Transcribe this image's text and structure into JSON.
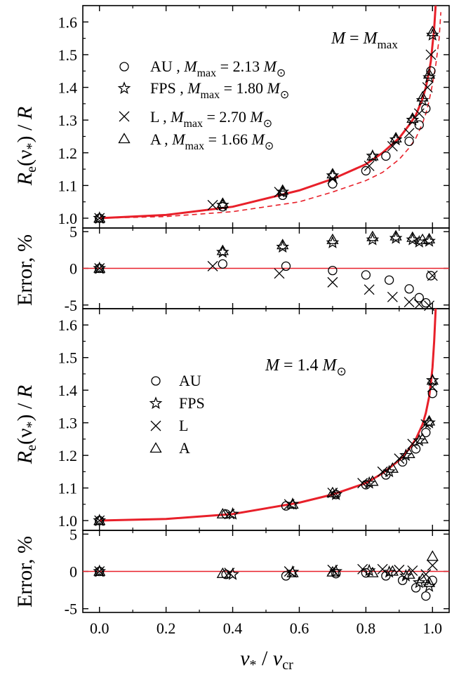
{
  "chart_data": [
    {
      "type": "scatter",
      "panel": "top-ratio",
      "annotation": "M = M_max",
      "ylabel": "R_e(ν_*) / R",
      "ylim": [
        0.97,
        1.65
      ],
      "yticks": [
        1.0,
        1.1,
        1.2,
        1.3,
        1.4,
        1.5,
        1.6
      ],
      "xlim": [
        -0.05,
        1.05
      ],
      "legend_position": "upper-left",
      "series": [
        {
          "name": "AU",
          "mmax": "M_max = 2.13 M_⊙",
          "marker": "circle",
          "x": [
            0.0,
            0.37,
            0.55,
            0.7,
            0.8,
            0.86,
            0.93,
            0.96,
            0.98,
            0.995
          ],
          "y": [
            1.0,
            1.035,
            1.07,
            1.105,
            1.145,
            1.19,
            1.235,
            1.285,
            1.335,
            1.45
          ]
        },
        {
          "name": "FPS",
          "mmax": "M_max = 1.80 M_⊙",
          "marker": "star",
          "x": [
            0.0,
            0.37,
            0.55,
            0.7,
            0.82,
            0.89,
            0.94,
            0.97,
            0.99,
            1.0
          ],
          "y": [
            1.0,
            1.04,
            1.08,
            1.13,
            1.19,
            1.24,
            1.3,
            1.36,
            1.43,
            1.56
          ]
        },
        {
          "name": "L",
          "mmax": "M_max = 2.70 M_⊙",
          "marker": "cross",
          "x": [
            0.0,
            0.34,
            0.54,
            0.7,
            0.81,
            0.88,
            0.93,
            0.96,
            0.985,
            0.995
          ],
          "y": [
            1.0,
            1.04,
            1.08,
            1.12,
            1.16,
            1.22,
            1.26,
            1.32,
            1.4,
            1.5
          ]
        },
        {
          "name": "A",
          "mmax": "M_max = 1.66 M_⊙",
          "marker": "triangle",
          "x": [
            0.0,
            0.37,
            0.55,
            0.7,
            0.82,
            0.89,
            0.94,
            0.97,
            0.99,
            1.0
          ],
          "y": [
            1.0,
            1.045,
            1.085,
            1.135,
            1.19,
            1.245,
            1.305,
            1.37,
            1.44,
            1.57
          ]
        }
      ],
      "curves": [
        {
          "style": "solid",
          "x": [
            0,
            0.2,
            0.4,
            0.6,
            0.7,
            0.8,
            0.85,
            0.9,
            0.93,
            0.95,
            0.97,
            0.98,
            0.99,
            0.995,
            1.0,
            1.005,
            1.01
          ],
          "y": [
            1.0,
            1.01,
            1.035,
            1.085,
            1.12,
            1.165,
            1.2,
            1.245,
            1.285,
            1.315,
            1.365,
            1.4,
            1.45,
            1.48,
            1.53,
            1.58,
            1.66
          ]
        },
        {
          "style": "dashed",
          "x": [
            0,
            0.2,
            0.4,
            0.6,
            0.7,
            0.8,
            0.85,
            0.9,
            0.93,
            0.95,
            0.97,
            0.98,
            0.99,
            1.0,
            1.01,
            1.02,
            1.025
          ],
          "y": [
            1.0,
            1.005,
            1.02,
            1.05,
            1.08,
            1.115,
            1.14,
            1.18,
            1.215,
            1.245,
            1.29,
            1.32,
            1.36,
            1.41,
            1.47,
            1.55,
            1.63
          ]
        }
      ]
    },
    {
      "type": "scatter",
      "panel": "top-error",
      "ylabel": "Error, %",
      "ylim": [
        -5.5,
        5.5
      ],
      "yticks": [
        -5,
        0,
        5
      ],
      "xlim": [
        -0.05,
        1.05
      ],
      "reference_line": 0,
      "series": [
        {
          "name": "AU",
          "marker": "circle",
          "x": [
            0.0,
            0.37,
            0.56,
            0.7,
            0.8,
            0.87,
            0.93,
            0.96,
            0.98,
            0.995
          ],
          "y": [
            0.0,
            0.6,
            0.3,
            -0.3,
            -0.9,
            -1.6,
            -2.8,
            -4.0,
            -4.7,
            -1.0
          ]
        },
        {
          "name": "FPS",
          "marker": "star",
          "x": [
            0.0,
            0.37,
            0.55,
            0.7,
            0.82,
            0.89,
            0.94,
            0.96,
            0.99
          ],
          "y": [
            0.0,
            2.2,
            2.9,
            3.5,
            3.9,
            4.1,
            3.9,
            3.6,
            3.7
          ]
        },
        {
          "name": "L",
          "marker": "cross",
          "x": [
            0.0,
            0.34,
            0.54,
            0.7,
            0.81,
            0.88,
            0.93,
            0.96,
            0.99,
            1.0
          ],
          "y": [
            0.0,
            0.3,
            -0.7,
            -1.9,
            -2.9,
            -3.9,
            -4.6,
            -4.9,
            -5.1,
            -1.0
          ]
        },
        {
          "name": "A",
          "marker": "triangle",
          "x": [
            0.0,
            0.37,
            0.55,
            0.7,
            0.82,
            0.89,
            0.94,
            0.97,
            0.99
          ],
          "y": [
            0.0,
            2.4,
            3.2,
            3.9,
            4.3,
            4.4,
            4.2,
            3.9,
            4.0
          ]
        }
      ]
    },
    {
      "type": "scatter",
      "panel": "bottom-ratio",
      "annotation": "M = 1.4 M_⊙",
      "ylabel": "R_e(ν_*) / R",
      "ylim": [
        0.97,
        1.65
      ],
      "yticks": [
        1.0,
        1.1,
        1.2,
        1.3,
        1.4,
        1.5,
        1.6
      ],
      "xlim": [
        -0.05,
        1.05
      ],
      "legend_position": "upper-left",
      "series": [
        {
          "name": "AU",
          "marker": "circle",
          "x": [
            0.0,
            0.38,
            0.56,
            0.71,
            0.8,
            0.86,
            0.91,
            0.95,
            0.98,
            1.0
          ],
          "y": [
            1.0,
            1.02,
            1.045,
            1.08,
            1.11,
            1.14,
            1.18,
            1.22,
            1.27,
            1.39
          ]
        },
        {
          "name": "FPS",
          "marker": "star",
          "x": [
            0.0,
            0.4,
            0.58,
            0.71,
            0.81,
            0.87,
            0.92,
            0.96,
            0.99,
            1.0
          ],
          "y": [
            1.0,
            1.02,
            1.05,
            1.08,
            1.115,
            1.15,
            1.2,
            1.245,
            1.3,
            1.43
          ]
        },
        {
          "name": "L",
          "marker": "cross",
          "x": [
            0.0,
            0.39,
            0.57,
            0.7,
            0.79,
            0.85,
            0.9,
            0.94,
            0.98,
            1.0
          ],
          "y": [
            1.0,
            1.02,
            1.05,
            1.085,
            1.115,
            1.15,
            1.19,
            1.235,
            1.295,
            1.41
          ]
        },
        {
          "name": "A",
          "marker": "triangle",
          "x": [
            0.0,
            0.37,
            0.58,
            0.7,
            0.82,
            0.88,
            0.93,
            0.97,
            0.99,
            1.0
          ],
          "y": [
            1.0,
            1.02,
            1.05,
            1.085,
            1.12,
            1.16,
            1.205,
            1.25,
            1.305,
            1.43
          ]
        }
      ],
      "curves": [
        {
          "style": "solid",
          "x": [
            0,
            0.2,
            0.4,
            0.6,
            0.7,
            0.8,
            0.85,
            0.9,
            0.93,
            0.95,
            0.97,
            0.98,
            0.99,
            0.995,
            1.0,
            1.005,
            1.01
          ],
          "y": [
            1.0,
            1.005,
            1.02,
            1.055,
            1.08,
            1.115,
            1.145,
            1.185,
            1.22,
            1.25,
            1.295,
            1.33,
            1.38,
            1.42,
            1.47,
            1.55,
            1.66
          ]
        }
      ]
    },
    {
      "type": "scatter",
      "panel": "bottom-error",
      "ylabel": "Error, %",
      "xlabel": "ν_* / ν_cr",
      "ylim": [
        -5.5,
        5.5
      ],
      "yticks": [
        -5,
        0,
        5
      ],
      "xlim": [
        -0.05,
        1.05
      ],
      "xticks": [
        0.0,
        0.2,
        0.4,
        0.6,
        0.8,
        1.0
      ],
      "reference_line": 0,
      "series": [
        {
          "name": "AU",
          "marker": "circle",
          "x": [
            0.0,
            0.38,
            0.56,
            0.71,
            0.8,
            0.86,
            0.91,
            0.95,
            0.98,
            1.0
          ],
          "y": [
            0.0,
            -0.4,
            -0.6,
            -0.3,
            -0.2,
            -0.6,
            -1.2,
            -2.2,
            -3.3,
            -1.2
          ]
        },
        {
          "name": "FPS",
          "marker": "star",
          "x": [
            0.0,
            0.4,
            0.58,
            0.71,
            0.81,
            0.87,
            0.92,
            0.96,
            0.99
          ],
          "y": [
            0.0,
            -0.4,
            -0.1,
            0.0,
            0.1,
            -0.1,
            -0.6,
            -1.5,
            -2.0
          ]
        },
        {
          "name": "L",
          "marker": "cross",
          "x": [
            0.0,
            0.39,
            0.57,
            0.7,
            0.79,
            0.85,
            0.9,
            0.94,
            0.98,
            1.0
          ],
          "y": [
            0.0,
            -0.2,
            0.0,
            0.2,
            0.3,
            0.3,
            0.2,
            0.1,
            -0.4,
            0.8
          ]
        },
        {
          "name": "A",
          "marker": "triangle",
          "x": [
            0.0,
            0.37,
            0.58,
            0.7,
            0.82,
            0.88,
            0.93,
            0.97,
            0.99,
            1.0
          ],
          "y": [
            0.0,
            -0.3,
            -0.2,
            -0.1,
            -0.2,
            0.0,
            -0.4,
            -1.0,
            -1.5,
            2.0
          ]
        }
      ]
    }
  ],
  "colors": {
    "fit_curve": "#e8202a",
    "zero_line": "#e8202a",
    "markers": "#000000",
    "axes": "#000000"
  }
}
